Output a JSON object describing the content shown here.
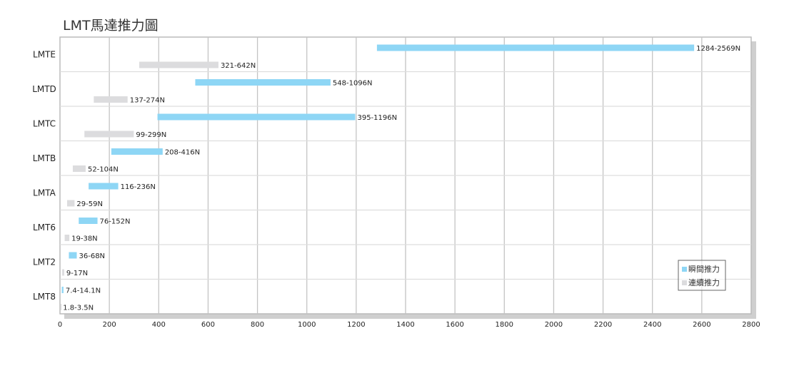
{
  "chart_data": {
    "type": "bar",
    "orientation": "horizontal-floating",
    "title": "LMT馬達推力圖",
    "categories": [
      "LMTE",
      "LMTD",
      "LMTC",
      "LMTB",
      "LMTA",
      "LMT6",
      "LMT2",
      "LMT8"
    ],
    "series": [
      {
        "name": "瞬間推力",
        "color": "#8ed6f5",
        "ranges": [
          [
            1284,
            2569
          ],
          [
            548,
            1096
          ],
          [
            395,
            1196
          ],
          [
            208,
            416
          ],
          [
            116,
            236
          ],
          [
            76,
            152
          ],
          [
            36,
            68
          ],
          [
            7.4,
            14.1
          ]
        ],
        "labels": [
          "1284-2569N",
          "548-1096N",
          "395-1196N",
          "208-416N",
          "116-236N",
          "76-152N",
          "36-68N",
          "7.4-14.1N"
        ]
      },
      {
        "name": "連續推力",
        "color": "#dcdcde",
        "ranges": [
          [
            321,
            642
          ],
          [
            137,
            274
          ],
          [
            99,
            299
          ],
          [
            52,
            104
          ],
          [
            29,
            59
          ],
          [
            19,
            38
          ],
          [
            9,
            17
          ],
          [
            1.8,
            3.5
          ]
        ],
        "labels": [
          "321-642N",
          "137-274N",
          "99-299N",
          "52-104N",
          "29-59N",
          "19-38N",
          "9-17N",
          "1.8-3.5N"
        ]
      }
    ],
    "xlim": [
      0,
      2800
    ],
    "xticks": [
      0,
      200,
      400,
      600,
      800,
      1000,
      1200,
      1400,
      1600,
      1800,
      2000,
      2200,
      2400,
      2600,
      2800
    ],
    "grid": true,
    "legend": "bottom-right"
  }
}
